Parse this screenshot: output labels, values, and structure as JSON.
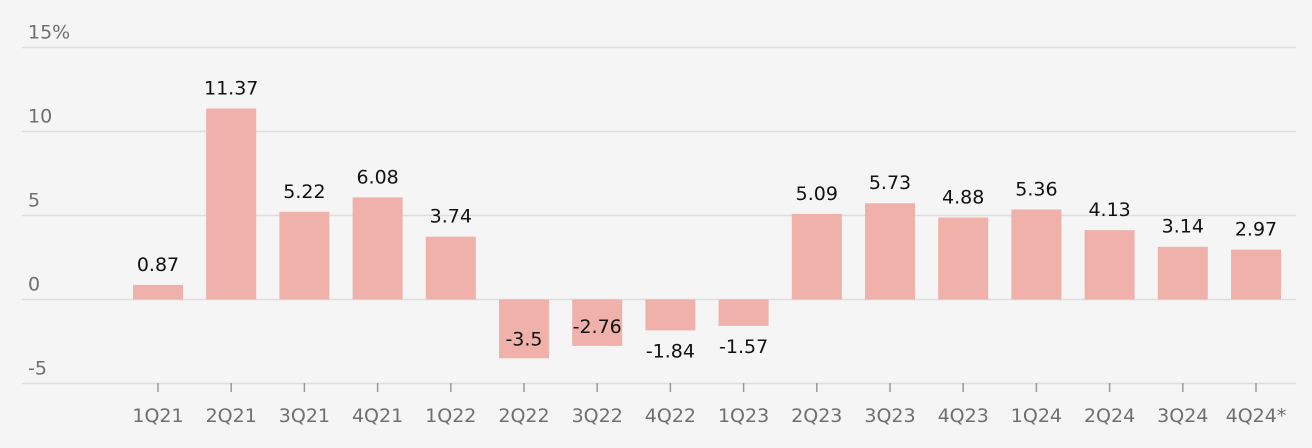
{
  "chart_data": {
    "type": "bar",
    "categories": [
      "1Q21",
      "2Q21",
      "3Q21",
      "4Q21",
      "1Q22",
      "2Q22",
      "3Q22",
      "4Q22",
      "1Q23",
      "2Q23",
      "3Q23",
      "4Q23",
      "1Q24",
      "2Q24",
      "3Q24",
      "4Q24*"
    ],
    "values": [
      0.87,
      11.37,
      5.22,
      6.08,
      3.74,
      -3.5,
      -2.76,
      -1.84,
      -1.57,
      5.09,
      5.73,
      4.88,
      5.36,
      4.13,
      3.14,
      2.97
    ],
    "data_labels": [
      "0.87",
      "11.37",
      "5.22",
      "6.08",
      "3.74",
      "-3.5",
      "-2.76",
      "-1.84",
      "-1.57",
      "5.09",
      "5.73",
      "4.88",
      "5.36",
      "4.13",
      "3.14",
      "2.97"
    ],
    "yticks": [
      -5,
      0,
      5,
      10,
      15
    ],
    "ytick_labels": [
      "-5",
      "0",
      "5",
      "10",
      "15%"
    ],
    "ylim": [
      -5,
      15
    ],
    "title": "",
    "xlabel": "",
    "ylabel": "",
    "grid": true,
    "colors": {
      "bar": "#efb1aa",
      "background": "#f5f5f5",
      "gridline": "#dddddd",
      "label": "#111111",
      "tick": "#6f6f6f"
    }
  }
}
